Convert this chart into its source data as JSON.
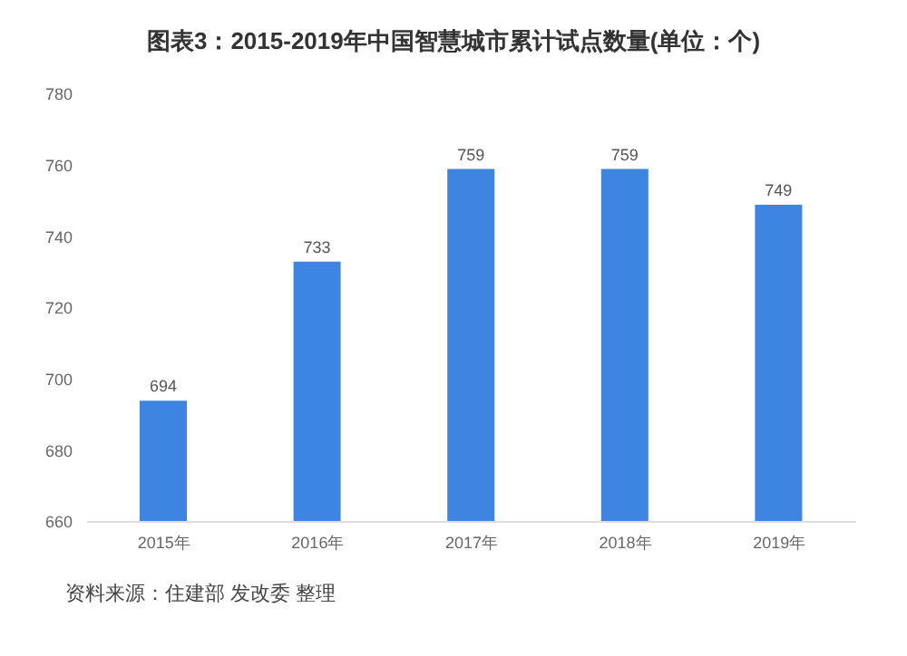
{
  "chart_data": {
    "type": "bar",
    "title": "图表3：2015-2019年中国智慧城市累计试点数量(单位：个)",
    "categories": [
      "2015年",
      "2016年",
      "2017年",
      "2018年",
      "2019年"
    ],
    "values": [
      694,
      733,
      759,
      759,
      749
    ],
    "color": "#3d85e0",
    "ylim": [
      660,
      780
    ],
    "yticks": [
      660,
      680,
      700,
      720,
      740,
      760,
      780
    ],
    "grid": false,
    "data_labels": true,
    "annotations": [
      "资料来源：住建部 发改委 整理"
    ]
  }
}
